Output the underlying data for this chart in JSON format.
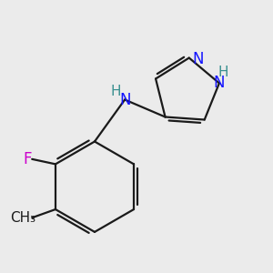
{
  "background_color": "#ebebeb",
  "bond_color": "#1a1a1a",
  "N_color": "#1414ff",
  "NH_N_color": "#1414ff",
  "NH_H_color": "#3a9090",
  "NH1_N_color": "#1414ff",
  "NH1_H_color": "#3a9090",
  "F_color": "#cc00cc",
  "line_width": 1.6,
  "font_size": 12,
  "figsize": [
    3.0,
    3.0
  ],
  "dpi": 100,
  "xlim": [
    -0.55,
    1.05
  ],
  "ylim": [
    -0.85,
    0.75
  ]
}
